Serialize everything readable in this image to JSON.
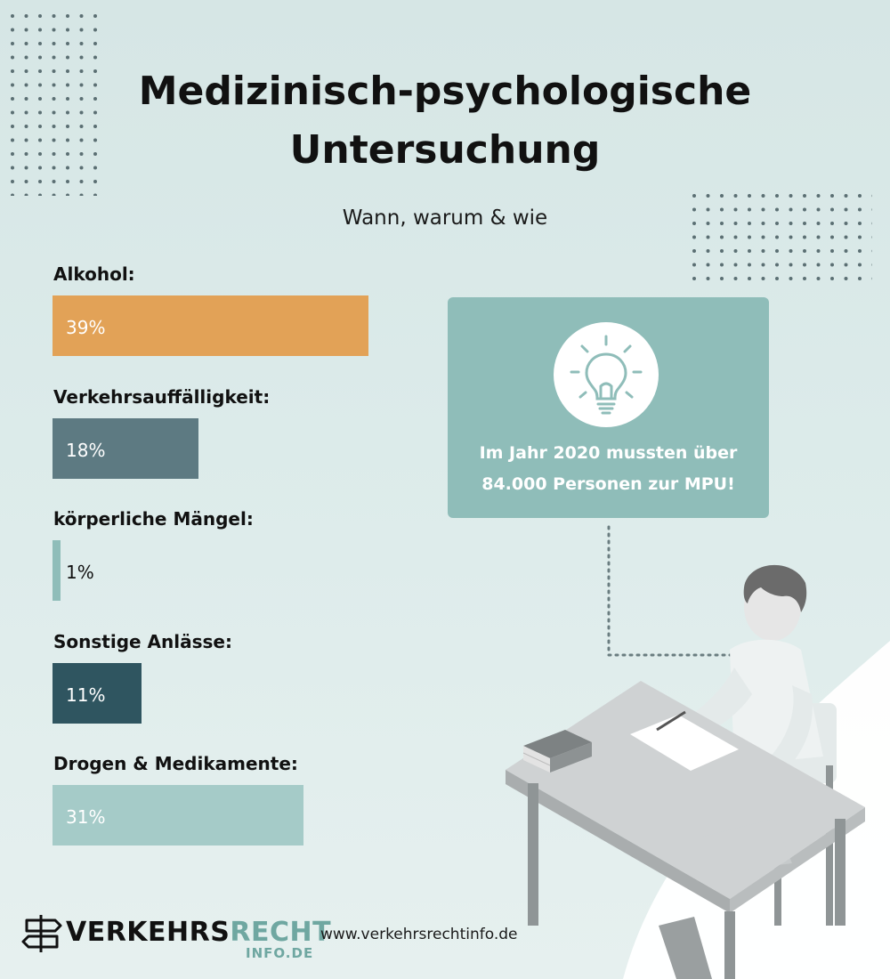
{
  "header": {
    "title_line1": "Medizinisch-psychologische",
    "title_line2": "Untersuchung",
    "subtitle": "Wann, warum & wie"
  },
  "chart_data": {
    "type": "bar",
    "orientation": "horizontal",
    "categories": [
      "Alkohol:",
      "Verkehrsauffälligkeit:",
      "körperliche Mängel:",
      "Sonstige Anlässe:",
      "Drogen & Medikamente:"
    ],
    "values": [
      39,
      18,
      1,
      11,
      31
    ],
    "value_labels": [
      "39%",
      "18%",
      "1%",
      "11%",
      "31%"
    ],
    "unit": "%",
    "colors": [
      "#e2a257",
      "#5d7a82",
      "#8fbdb9",
      "#2f5560",
      "#a5cbc8"
    ]
  },
  "info_box": {
    "icon": "lightbulb-icon",
    "text_line1": "Im Jahr 2020 mussten über",
    "text_line2": "84.000 Personen zur MPU!",
    "color": "#8fbdb9"
  },
  "footer": {
    "logo_part1": "VERKEHRS",
    "logo_part2": "RECHT",
    "logo_sub": "INFO.DE",
    "url": "www.verkehrsrechtinfo.de",
    "logo_accent": "#6fa7a1"
  },
  "illustration": "person-at-desk"
}
